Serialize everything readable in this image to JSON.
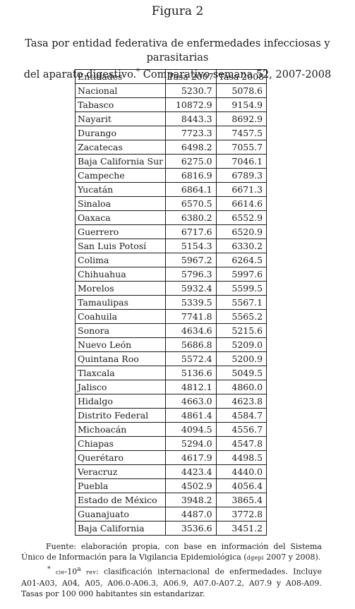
{
  "figure_label": "Figura 2",
  "caption": {
    "line1": "Tasa por entidad federativa de enfermedades infecciosas y parasitarias",
    "line2_start": "del aparato digestivo.",
    "line2_mark": "*",
    "line2_end": " Comparativo semana 52, 2007-2008"
  },
  "table": {
    "headers": [
      "Entidades",
      "Tasa 2007",
      "Tasa 2008"
    ],
    "rows": [
      [
        "Nacional",
        "5230.7",
        "5078.6"
      ],
      [
        "Tabasco",
        "10872.9",
        "9154.9"
      ],
      [
        "Nayarit",
        "8443.3",
        "8692.9"
      ],
      [
        "Durango",
        "7723.3",
        "7457.5"
      ],
      [
        "Zacatecas",
        "6498.2",
        "7055.7"
      ],
      [
        "Baja California Sur",
        "6275.0",
        "7046.1"
      ],
      [
        "Campeche",
        "6816.9",
        "6789.3"
      ],
      [
        "Yucatán",
        "6864.1",
        "6671.3"
      ],
      [
        "Sinaloa",
        "6570.5",
        "6614.6"
      ],
      [
        "Oaxaca",
        "6380.2",
        "6552.9"
      ],
      [
        "Guerrero",
        "6717.6",
        "6520.9"
      ],
      [
        "San Luis Potosí",
        "5154.3",
        "6330.2"
      ],
      [
        "Colima",
        "5967.2",
        "6264.5"
      ],
      [
        "Chihuahua",
        "5796.3",
        "5997.6"
      ],
      [
        "Morelos",
        "5932.4",
        "5599.5"
      ],
      [
        "Tamaulipas",
        "5339.5",
        "5567.1"
      ],
      [
        "Coahuila",
        "7741.8",
        "5565.2"
      ],
      [
        "Sonora",
        "4634.6",
        "5215.6"
      ],
      [
        "Nuevo León",
        "5686.8",
        "5209.0"
      ],
      [
        "Quintana Roo",
        "5572.4",
        "5200.9"
      ],
      [
        "Tlaxcala",
        "5136.6",
        "5049.5"
      ],
      [
        "Jalisco",
        "4812.1",
        "4860.0"
      ],
      [
        "Hidalgo",
        "4663.0",
        "4623.8"
      ],
      [
        "Distrito Federal",
        "4861.4",
        "4584.7"
      ],
      [
        "Michoacán",
        "4094.5",
        "4556.7"
      ],
      [
        "Chiapas",
        "5294.0",
        "4547.8"
      ],
      [
        "Querétaro",
        "4617.9",
        "4498.5"
      ],
      [
        "Veracruz",
        "4423.4",
        "4440.0"
      ],
      [
        "Puebla",
        "4502.9",
        "4056.4"
      ],
      [
        "Estado de México",
        "3948.2",
        "3865.4"
      ],
      [
        "Guanajuato",
        "4487.0",
        "3772.8"
      ],
      [
        "Baja California",
        "3536.6",
        "3451.2"
      ]
    ]
  },
  "notes": {
    "source_a": "Fuente: elaboración propia, con base en información del Sistema Único de Información para la Vigilancia Epidemiológica (",
    "source_acr": "dgepi",
    "source_b": " 2007 y 2008).",
    "fn_mark": "*",
    "fn_cie": "cie",
    "fn_cie_mid": "-10",
    "fn_cie_sup": "a",
    "fn_rev": "rev",
    "fn_text": ": clasificación internacional de enfermedades. Incluye A01-A03, A04, A05, A06.0-A06.3, A06.9, A07.0-A07.2, A07.9 y A08-A09. Tasas por 100 000 habitantes sin estandarizar."
  }
}
